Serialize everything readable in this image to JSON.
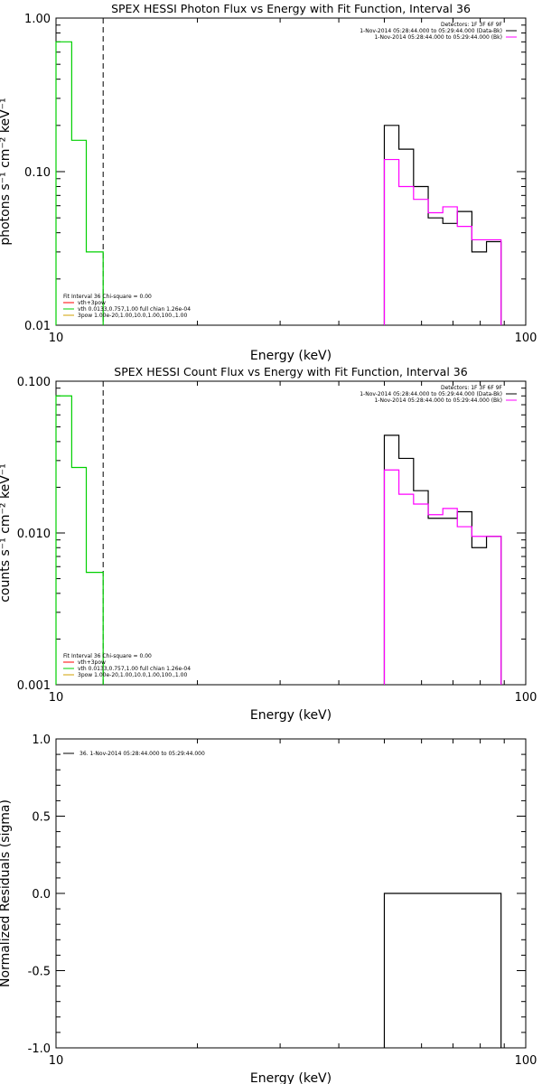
{
  "chart_data": [
    {
      "type": "line",
      "title": "SPEX HESSI Photon Flux vs Energy with Fit Function, Interval 36",
      "xlabel": "Energy (keV)",
      "ylabel": "photons s⁻¹ cm⁻² keV⁻¹",
      "xscale": "log",
      "yscale": "log",
      "xlim": [
        10,
        100
      ],
      "ylim": [
        0.01,
        1.0
      ],
      "xticks": [
        {
          "v": 10,
          "label": "10"
        },
        {
          "v": 100,
          "label": "100"
        }
      ],
      "yticks": [
        {
          "v": 0.01,
          "label": "0.01"
        },
        {
          "v": 0.1,
          "label": "0.10"
        },
        {
          "v": 1.0,
          "label": "1.00"
        }
      ],
      "vline": 12.6,
      "legend_top": [
        "Detectors: 1F 3F 6F 9F",
        "1-Nov-2014 05:28:44.000 to 05:29:44.000 (Data-Bk)",
        "1-Nov-2014 05:28:44.000 to 05:29:44.000 (Bk)"
      ],
      "legend_bottom": [
        "Fit Interval 36   Chi-square = 0.00",
        "vth+3pow",
        "vth 0.0133,0.757,1.00  full chian 1.26e-04",
        "3pow 1.00e-20,1.00,10.0,1.00,100.,1.00"
      ],
      "series": [
        {
          "color": "#000000",
          "edges": [
            50,
            53.7,
            57.7,
            62,
            66.6,
            71.5,
            76.8,
            82.5,
            88.6
          ],
          "values": [
            0.2,
            0.14,
            0.08,
            0.05,
            0.046,
            0.055,
            0.03,
            0.035
          ]
        },
        {
          "color": "#ff00ff",
          "edges": [
            50,
            53.7,
            57.7,
            62,
            66.6,
            71.5,
            76.8,
            82.5,
            88.6
          ],
          "values": [
            0.12,
            0.08,
            0.066,
            0.054,
            0.059,
            0.044,
            0.036,
            0.036
          ]
        },
        {
          "color": "#00d000",
          "edges": [
            10,
            10.8,
            11.6,
            12.6
          ],
          "values": [
            0.7,
            0.16,
            0.03
          ]
        }
      ]
    },
    {
      "type": "line",
      "title": "SPEX HESSI Count Flux vs Energy with Fit Function, Interval 36",
      "xlabel": "Energy (keV)",
      "ylabel": "counts s⁻¹ cm⁻² keV⁻¹",
      "xscale": "log",
      "yscale": "log",
      "xlim": [
        10,
        100
      ],
      "ylim": [
        0.001,
        0.1
      ],
      "xticks": [
        {
          "v": 10,
          "label": "10"
        },
        {
          "v": 100,
          "label": "100"
        }
      ],
      "yticks": [
        {
          "v": 0.001,
          "label": "0.001"
        },
        {
          "v": 0.01,
          "label": "0.010"
        },
        {
          "v": 0.1,
          "label": "0.100"
        }
      ],
      "vline": 12.6,
      "legend_top": [
        "Detectors: 1F 3F 6F 9F",
        "1-Nov-2014 05:28:44.000 to 05:29:44.000 (Data-Bk)",
        "1-Nov-2014 05:28:44.000 to 05:29:44.000 (Bk)"
      ],
      "legend_bottom": [
        "Fit Interval 36   Chi-square = 0.00",
        "vth+3pow",
        "vth 0.0133,0.757,1.00  full chian 1.26e-04",
        "3pow 1.00e-20,1.00,10.0,1.00,100.,1.00"
      ],
      "series": [
        {
          "color": "#000000",
          "edges": [
            50,
            53.7,
            57.7,
            62,
            66.6,
            71.5,
            76.8,
            82.5,
            88.6
          ],
          "values": [
            0.044,
            0.031,
            0.019,
            0.0125,
            0.0125,
            0.0138,
            0.008,
            0.0095
          ]
        },
        {
          "color": "#ff00ff",
          "edges": [
            50,
            53.7,
            57.7,
            62,
            66.6,
            71.5,
            76.8,
            82.5,
            88.6
          ],
          "values": [
            0.026,
            0.018,
            0.0155,
            0.0132,
            0.0145,
            0.011,
            0.0095,
            0.0095
          ]
        },
        {
          "color": "#00d000",
          "edges": [
            10,
            10.8,
            11.6,
            12.6
          ],
          "values": [
            0.08,
            0.027,
            0.0055
          ]
        }
      ]
    },
    {
      "type": "line",
      "title": "",
      "xlabel": "Energy (keV)",
      "ylabel": "Normalized Residuals (sigma)",
      "xscale": "log",
      "yscale": "linear",
      "xlim": [
        10,
        100
      ],
      "ylim": [
        -1.0,
        1.0
      ],
      "xticks": [
        {
          "v": 10,
          "label": "10"
        },
        {
          "v": 100,
          "label": "100"
        }
      ],
      "yticks": [
        {
          "v": -1.0,
          "label": "-1.0"
        },
        {
          "v": -0.5,
          "label": "-0.5"
        },
        {
          "v": 0.0,
          "label": "0.0"
        },
        {
          "v": 0.5,
          "label": "0.5"
        },
        {
          "v": 1.0,
          "label": "1.0"
        }
      ],
      "vline": null,
      "legend_top": [],
      "legend_bottom": [],
      "legend_left": "36.  1-Nov-2014 05:28:44.000 to 05:29:44.000",
      "series": [
        {
          "color": "#000000",
          "edges": [
            50,
            88.6
          ],
          "values": [
            0.0
          ]
        }
      ]
    }
  ]
}
